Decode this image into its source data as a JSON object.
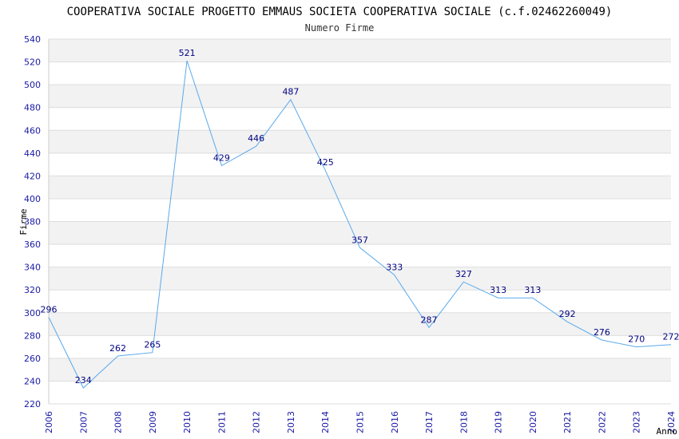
{
  "chart_data": {
    "type": "line",
    "title": "COOPERATIVA SOCIALE PROGETTO EMMAUS SOCIETA COOPERATIVA SOCIALE (c.f.02462260049)",
    "subtitle": "Numero Firme",
    "xlabel": "Anno",
    "ylabel": "Firme",
    "categories": [
      "2006",
      "2007",
      "2008",
      "2009",
      "2010",
      "2011",
      "2012",
      "2013",
      "2014",
      "2015",
      "2016",
      "2017",
      "2018",
      "2019",
      "2020",
      "2021",
      "2022",
      "2023",
      "2024"
    ],
    "values": [
      296,
      234,
      262,
      265,
      521,
      429,
      446,
      487,
      425,
      357,
      333,
      287,
      327,
      313,
      313,
      292,
      276,
      270,
      272
    ],
    "ylim": [
      220,
      540
    ],
    "yticks": [
      220,
      240,
      260,
      280,
      300,
      320,
      340,
      360,
      380,
      400,
      420,
      440,
      460,
      480,
      500,
      520,
      540
    ],
    "grid": "horizontal bands",
    "colors": {
      "line": "#5aa9ec",
      "band": "#f2f2f2",
      "gridline": "#dddddd",
      "tick_text": "#1a1aa6",
      "label_text": "#000080"
    }
  }
}
